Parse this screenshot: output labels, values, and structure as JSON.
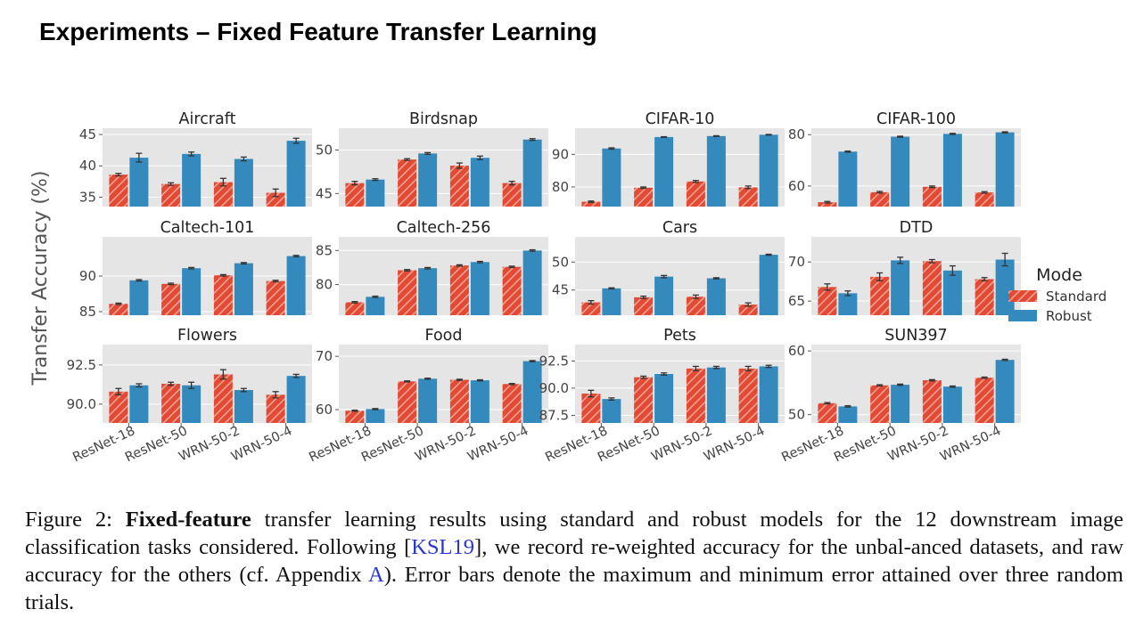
{
  "slide": {
    "title": "Experiments – Fixed Feature Transfer Learning"
  },
  "chart_data": {
    "type": "bar",
    "ylabel": "Transfer Accuracy (%)",
    "categories": [
      "ResNet-18",
      "ResNet-50",
      "WRN-50-2",
      "WRN-50-4"
    ],
    "legend": {
      "title": "Mode",
      "position": "right",
      "entries": [
        "Standard",
        "Robust"
      ]
    },
    "colors": {
      "Standard": "#E24A33",
      "Robust": "#348ABD",
      "panel_bg": "#E5E5E5",
      "grid": "#ffffff"
    },
    "hatch_standard": true,
    "grid": true,
    "panels": [
      {
        "title": "Aircraft",
        "ylim": [
          33.5,
          46
        ],
        "yticks": [
          "45",
          "40",
          "35"
        ],
        "ytick_values": [
          45,
          40,
          35
        ],
        "series": [
          {
            "name": "Standard",
            "values": [
              38.6,
              37.1,
              37.4,
              35.7
            ],
            "err": [
              0.2,
              0.2,
              0.6,
              0.6
            ]
          },
          {
            "name": "Robust",
            "values": [
              41.3,
              41.9,
              41.1,
              44.0
            ],
            "err": [
              0.7,
              0.3,
              0.3,
              0.4
            ]
          }
        ]
      },
      {
        "title": "Birdsnap",
        "ylim": [
          43.5,
          52.5
        ],
        "yticks": [
          "50",
          "45"
        ],
        "ytick_values": [
          50,
          45
        ],
        "series": [
          {
            "name": "Standard",
            "values": [
              46.2,
              48.9,
              48.2,
              46.2
            ],
            "err": [
              0.2,
              0.1,
              0.3,
              0.2
            ]
          },
          {
            "name": "Robust",
            "values": [
              46.6,
              49.6,
              49.1,
              51.2
            ],
            "err": [
              0.1,
              0.1,
              0.2,
              0.1
            ]
          }
        ]
      },
      {
        "title": "CIFAR-10",
        "ylim": [
          74,
          98
        ],
        "yticks": [
          "90",
          "80"
        ],
        "ytick_values": [
          90,
          80
        ],
        "series": [
          {
            "name": "Standard",
            "values": [
              75.5,
              79.8,
              81.7,
              79.9
            ],
            "err": [
              0.2,
              0.2,
              0.3,
              0.4
            ]
          },
          {
            "name": "Robust",
            "values": [
              91.8,
              95.3,
              95.6,
              96.0
            ],
            "err": [
              0.2,
              0.1,
              0.1,
              0.1
            ]
          }
        ]
      },
      {
        "title": "CIFAR-100",
        "ylim": [
          52,
          82.5
        ],
        "yticks": [
          "80",
          "60"
        ],
        "ytick_values": [
          80,
          60
        ],
        "series": [
          {
            "name": "Standard",
            "values": [
              53.7,
              57.6,
              59.7,
              57.5
            ],
            "err": [
              0.3,
              0.3,
              0.3,
              0.3
            ]
          },
          {
            "name": "Robust",
            "values": [
              73.4,
              79.2,
              80.3,
              80.9
            ],
            "err": [
              0.2,
              0.2,
              0.2,
              0.2
            ]
          }
        ]
      },
      {
        "title": "Caltech-101",
        "ylim": [
          84.5,
          95.5
        ],
        "yticks": [
          "90",
          "85"
        ],
        "ytick_values": [
          90,
          85
        ],
        "series": [
          {
            "name": "Standard",
            "values": [
              86.1,
              88.9,
              90.1,
              89.3
            ],
            "err": [
              0.1,
              0.1,
              0.1,
              0.1
            ]
          },
          {
            "name": "Robust",
            "values": [
              89.4,
              91.1,
              91.8,
              92.8
            ],
            "err": [
              0.1,
              0.1,
              0.1,
              0.1
            ]
          }
        ]
      },
      {
        "title": "Caltech-256",
        "ylim": [
          75.5,
          87
        ],
        "yticks": [
          "85",
          "80"
        ],
        "ytick_values": [
          85,
          80
        ],
        "series": [
          {
            "name": "Standard",
            "values": [
              77.4,
              82.1,
              82.8,
              82.6
            ],
            "err": [
              0.1,
              0.1,
              0.1,
              0.1
            ]
          },
          {
            "name": "Robust",
            "values": [
              78.2,
              82.4,
              83.3,
              85.0
            ],
            "err": [
              0.1,
              0.1,
              0.1,
              0.1
            ]
          }
        ]
      },
      {
        "title": "Cars",
        "ylim": [
          40.5,
          54.5
        ],
        "yticks": [
          "50",
          "45"
        ],
        "ytick_values": [
          50,
          45
        ],
        "series": [
          {
            "name": "Standard",
            "values": [
              42.8,
              43.7,
              43.8,
              42.4
            ],
            "err": [
              0.3,
              0.2,
              0.3,
              0.3
            ]
          },
          {
            "name": "Robust",
            "values": [
              45.3,
              47.4,
              47.1,
              51.3
            ],
            "err": [
              0.1,
              0.2,
              0.1,
              0.1
            ]
          }
        ]
      },
      {
        "title": "DTD",
        "ylim": [
          63.2,
          73.2
        ],
        "yticks": [
          "70",
          "65"
        ],
        "ytick_values": [
          70,
          65
        ],
        "series": [
          {
            "name": "Standard",
            "values": [
              66.8,
              68.1,
              70.1,
              67.8
            ],
            "err": [
              0.4,
              0.5,
              0.2,
              0.2
            ]
          },
          {
            "name": "Robust",
            "values": [
              66.0,
              70.2,
              68.9,
              70.3
            ],
            "err": [
              0.3,
              0.4,
              0.6,
              0.8
            ]
          }
        ]
      },
      {
        "title": "Flowers",
        "ylim": [
          88.8,
          93.8
        ],
        "yticks": [
          "92.5",
          "90.0"
        ],
        "ytick_values": [
          92.5,
          90.0
        ],
        "series": [
          {
            "name": "Standard",
            "values": [
              90.8,
              91.3,
              91.9,
              90.6
            ],
            "err": [
              0.2,
              0.1,
              0.3,
              0.2
            ]
          },
          {
            "name": "Robust",
            "values": [
              91.2,
              91.2,
              90.9,
              91.8
            ],
            "err": [
              0.1,
              0.2,
              0.1,
              0.1
            ]
          }
        ]
      },
      {
        "title": "Food",
        "ylim": [
          57.5,
          72.2
        ],
        "yticks": [
          "70",
          "60"
        ],
        "ytick_values": [
          70,
          60
        ],
        "series": [
          {
            "name": "Standard",
            "values": [
              59.8,
              65.3,
              65.6,
              64.8
            ],
            "err": [
              0.1,
              0.1,
              0.1,
              0.1
            ]
          },
          {
            "name": "Robust",
            "values": [
              60.1,
              65.8,
              65.5,
              69.1
            ],
            "err": [
              0.1,
              0.1,
              0.1,
              0.1
            ]
          }
        ]
      },
      {
        "title": "Pets",
        "ylim": [
          86.8,
          94.0
        ],
        "yticks": [
          "92.5",
          "90.0",
          "87.5"
        ],
        "ytick_values": [
          92.5,
          90.0,
          87.5
        ],
        "series": [
          {
            "name": "Standard",
            "values": [
              89.5,
              91.0,
              91.8,
              91.8
            ],
            "err": [
              0.3,
              0.1,
              0.2,
              0.2
            ]
          },
          {
            "name": "Robust",
            "values": [
              89.0,
              91.3,
              91.9,
              92.0
            ],
            "err": [
              0.1,
              0.1,
              0.1,
              0.1
            ]
          }
        ]
      },
      {
        "title": "SUN397",
        "ylim": [
          48.7,
          61.0
        ],
        "yticks": [
          "60",
          "50"
        ],
        "ytick_values": [
          60,
          50
        ],
        "series": [
          {
            "name": "Standard",
            "values": [
              51.8,
              54.6,
              55.4,
              55.8
            ],
            "err": [
              0.1,
              0.1,
              0.1,
              0.1
            ]
          },
          {
            "name": "Robust",
            "values": [
              51.3,
              54.7,
              54.4,
              58.6
            ],
            "err": [
              0.1,
              0.1,
              0.1,
              0.1
            ]
          }
        ]
      }
    ]
  },
  "caption": {
    "prefix": "Figure 2: ",
    "bold": "Fixed-feature",
    "text1": " transfer learning results using standard and robust models for the 12 downstream image classification tasks considered. Following [",
    "cite1": "KSL19",
    "text2": "], we record re-weighted accuracy for the unbal-anced datasets, and raw accuracy for the others (cf. Appendix ",
    "cite2": "A",
    "text3": "). Error bars denote the maximum and minimum error attained over three random trials."
  }
}
